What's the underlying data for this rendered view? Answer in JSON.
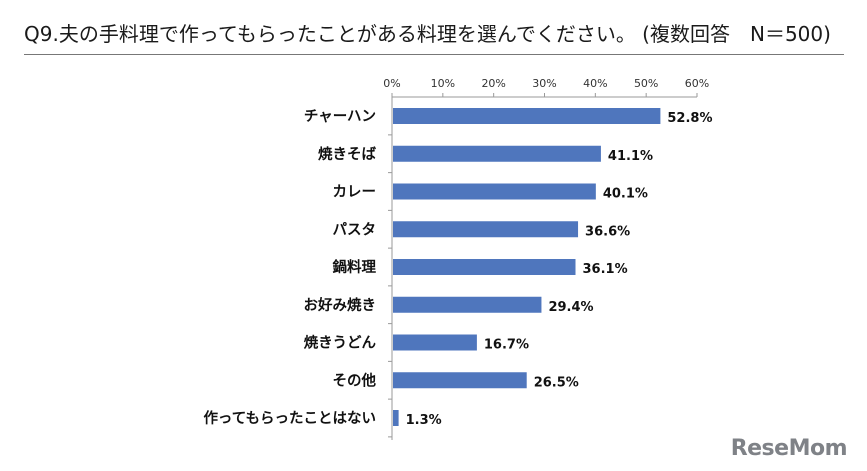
{
  "page": {
    "title": "Q9.夫の手料理で作ってもらったことがある料理を選んでください。 (複数回答　N＝500)",
    "logo": "ReseMom"
  },
  "colors": {
    "bar": "#4f76bd",
    "axis": "#9a9a9a",
    "text": "#111111"
  },
  "chart_data": {
    "type": "bar",
    "orientation": "horizontal",
    "title": "Q9.夫の手料理で作ってもらったことがある料理を選んでください。 (複数回答　N＝500)",
    "categories": [
      "チャーハン",
      "焼きそば",
      "カレー",
      "パスタ",
      "鍋料理",
      "お好み焼き",
      "焼きうどん",
      "その他",
      "作ってもらったことはない"
    ],
    "values": [
      52.8,
      41.1,
      40.1,
      36.6,
      36.1,
      29.4,
      16.7,
      26.5,
      1.3
    ],
    "value_labels": [
      "52.8%",
      "41.1%",
      "40.1%",
      "36.6%",
      "36.1%",
      "29.4%",
      "16.7%",
      "26.5%",
      "1.3%"
    ],
    "xlim": [
      0,
      60
    ],
    "xticks": [
      0,
      10,
      20,
      30,
      40,
      50,
      60
    ],
    "xtick_labels": [
      "0%",
      "10%",
      "20%",
      "30%",
      "40%",
      "50%",
      "60%"
    ],
    "xaxis_position": "top",
    "grid": false,
    "legend": "none"
  }
}
